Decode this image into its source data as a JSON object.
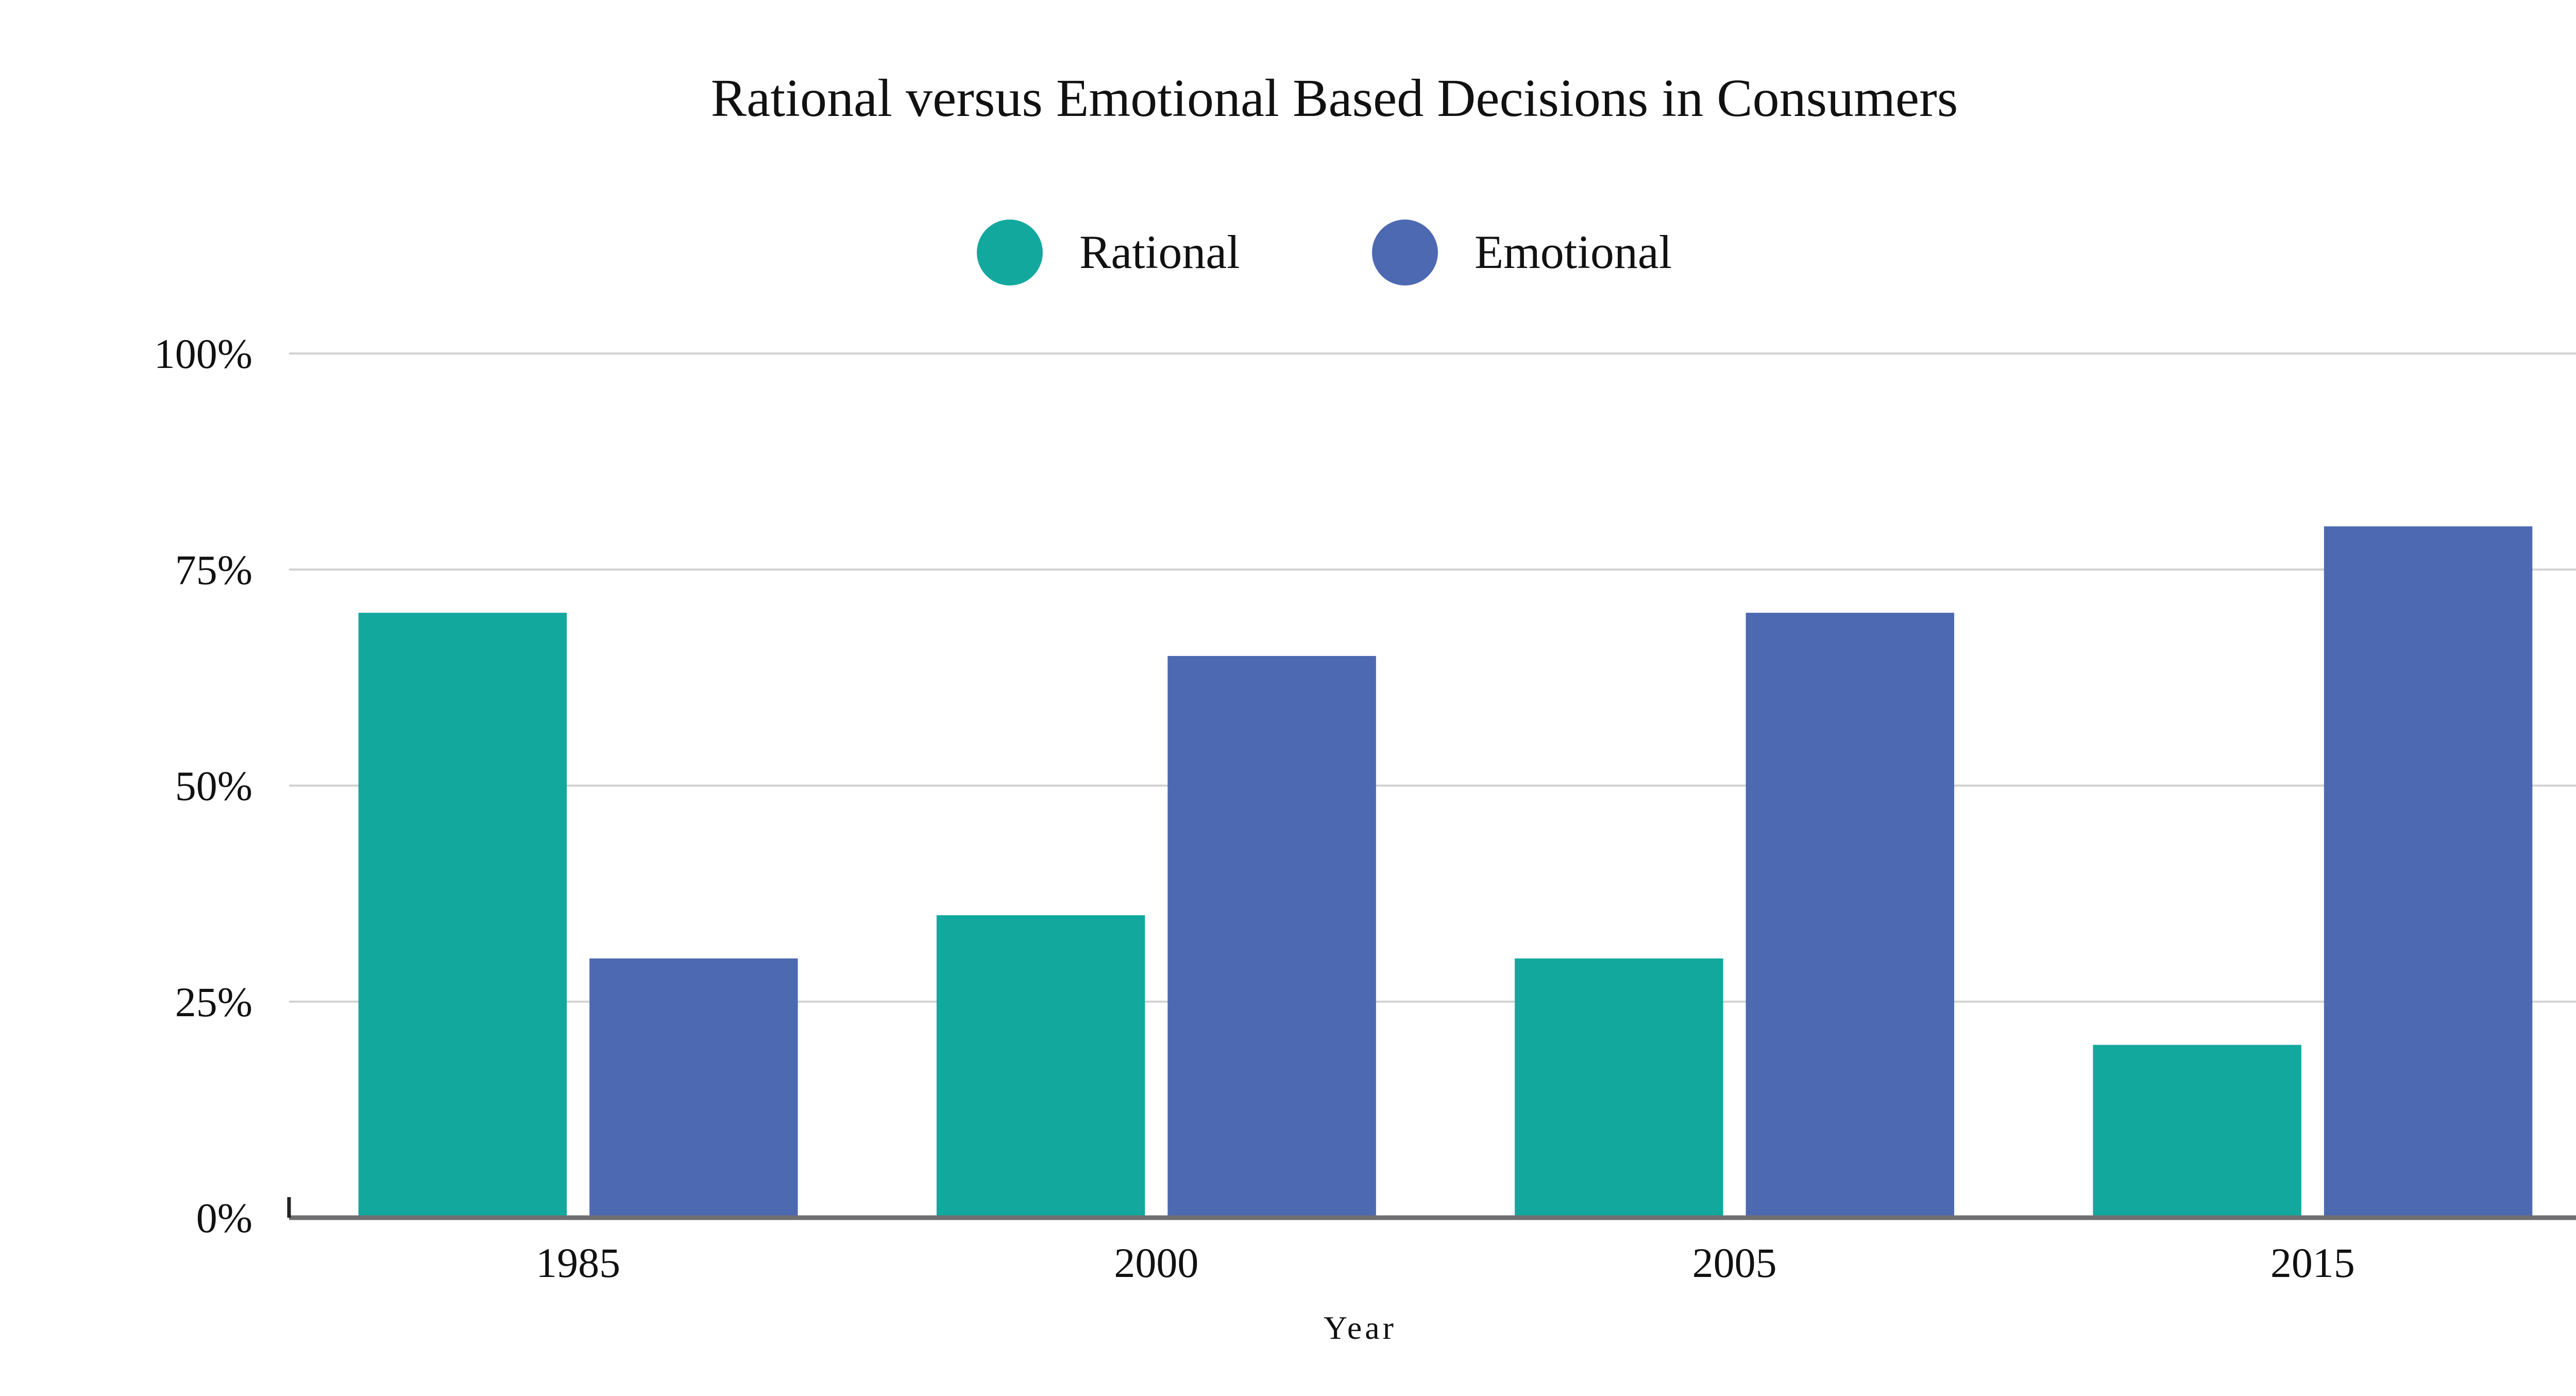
{
  "chart_data": {
    "type": "bar",
    "title": "Rational versus Emotional Based Decisions in Consumers",
    "xlabel": "Year",
    "ylabel": "",
    "categories": [
      "1985",
      "2000",
      "2005",
      "2015"
    ],
    "series": [
      {
        "name": "Rational",
        "color": "#13a89e",
        "values": [
          70,
          35,
          30,
          20
        ]
      },
      {
        "name": "Emotional",
        "color": "#4d69b1",
        "values": [
          30,
          65,
          70,
          80
        ]
      }
    ],
    "ylim": [
      0,
      100
    ],
    "yticks": [
      0,
      25,
      50,
      75,
      100
    ],
    "ytick_labels": [
      "0%",
      "25%",
      "50%",
      "75%",
      "100%"
    ],
    "grid": true,
    "legend_position": "top-center",
    "unit": "%"
  }
}
